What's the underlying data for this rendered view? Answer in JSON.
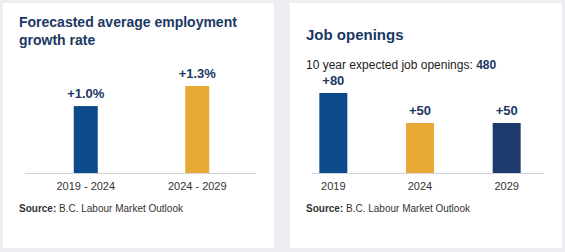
{
  "chart_data": [
    {
      "type": "bar",
      "title": "Forecasted average employment growth rate",
      "categories": [
        "2019 - 2024",
        "2024 - 2029"
      ],
      "values": [
        1.0,
        1.3
      ],
      "value_labels": [
        "+1.0%",
        "+1.3%"
      ],
      "colors": [
        "#0d4a8c",
        "#e8a935"
      ],
      "data_labels": true,
      "tick_labels": "x",
      "grid": false,
      "source": "Source: B.C. Labour Market Outlook"
    },
    {
      "type": "bar",
      "title": "Job openings",
      "subtitle": "10 year expected job openings: 480",
      "categories": [
        "2019",
        "2024",
        "2029"
      ],
      "values": [
        80,
        50,
        50
      ],
      "value_labels": [
        "+80",
        "+50",
        "+50"
      ],
      "colors": [
        "#0d4a8c",
        "#e8a935",
        "#1f3a6e"
      ],
      "data_labels": true,
      "tick_labels": "x",
      "grid": false,
      "source": "Source: B.C. Labour Market Outlook"
    }
  ]
}
